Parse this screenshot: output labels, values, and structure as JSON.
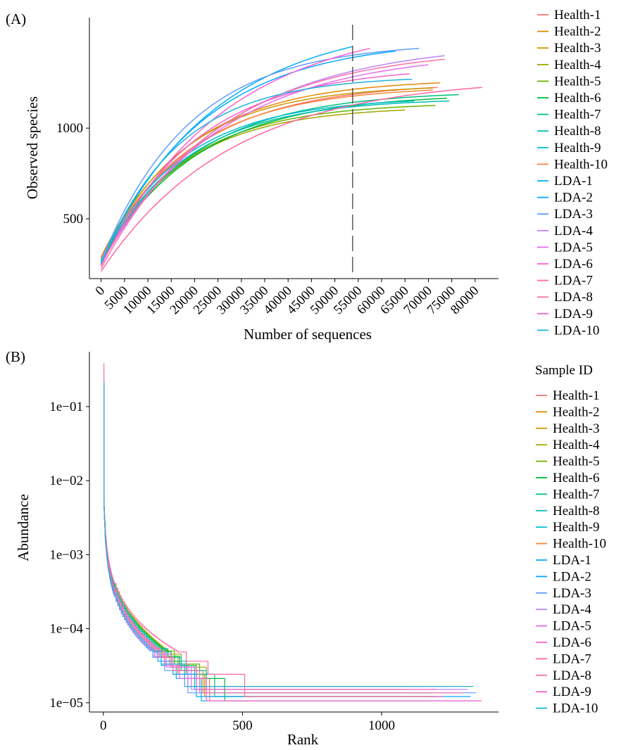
{
  "palette": [
    "#F8766D",
    "#E58700",
    "#C99800",
    "#A3A500",
    "#6BB100",
    "#00BA38",
    "#00BF7D",
    "#00C0AF",
    "#00BCD8",
    "#F8863C",
    "#00B0F6",
    "#00A9FF",
    "#619CFF",
    "#B983FF",
    "#E76BF3",
    "#FD61D1",
    "#FF67A4",
    "#FF6FA8",
    "#F664C8",
    "#1FB5D9"
  ],
  "chart_data": [
    {
      "panel": "(A)",
      "type": "line",
      "xlabel": "Number of sequences",
      "ylabel": "Observed species",
      "xlim": [
        -2500,
        85000
      ],
      "ylim": [
        170,
        1610
      ],
      "x_ticks": [
        0,
        5000,
        10000,
        15000,
        20000,
        25000,
        30000,
        35000,
        40000,
        45000,
        50000,
        55000,
        60000,
        65000,
        70000,
        75000,
        80000
      ],
      "y_ticks": [
        500,
        1000
      ],
      "vline_x": 53800,
      "vline_style": "dashed",
      "legend_position": "right",
      "series": [
        {
          "name": "Health-1",
          "start": 285,
          "mid20k": 895,
          "end_x": 72000,
          "end_y": 1225
        },
        {
          "name": "Health-2",
          "start": 290,
          "mid20k": 930,
          "end_x": 72500,
          "end_y": 1250
        },
        {
          "name": "Health-3",
          "start": 275,
          "mid20k": 925,
          "end_x": 71000,
          "end_y": 1222
        },
        {
          "name": "Health-4",
          "start": 255,
          "mid20k": 850,
          "end_x": 65000,
          "end_y": 1100
        },
        {
          "name": "Health-5",
          "start": 260,
          "mid20k": 855,
          "end_x": 71500,
          "end_y": 1125
        },
        {
          "name": "Health-6",
          "start": 265,
          "mid20k": 845,
          "end_x": 74000,
          "end_y": 1165
        },
        {
          "name": "Health-7",
          "start": 270,
          "mid20k": 860,
          "end_x": 76500,
          "end_y": 1185
        },
        {
          "name": "Health-8",
          "start": 272,
          "mid20k": 865,
          "end_x": 74500,
          "end_y": 1150
        },
        {
          "name": "Health-9",
          "start": 280,
          "mid20k": 880,
          "end_x": 67000,
          "end_y": 1150
        },
        {
          "name": "Health-10",
          "start": 285,
          "mid20k": 900,
          "end_x": 71000,
          "end_y": 1210
        },
        {
          "name": "LDA-1",
          "start": 270,
          "mid20k": 1010,
          "end_x": 53800,
          "end_y": 1450
        },
        {
          "name": "LDA-2",
          "start": 260,
          "mid20k": 1005,
          "end_x": 63000,
          "end_y": 1425
        },
        {
          "name": "LDA-3",
          "start": 265,
          "mid20k": 1050,
          "end_x": 68000,
          "end_y": 1440
        },
        {
          "name": "LDA-4",
          "start": 255,
          "mid20k": 900,
          "end_x": 73500,
          "end_y": 1400
        },
        {
          "name": "LDA-5",
          "start": 250,
          "mid20k": 890,
          "end_x": 70000,
          "end_y": 1350
        },
        {
          "name": "LDA-6",
          "start": 245,
          "mid20k": 960,
          "end_x": 57500,
          "end_y": 1440
        },
        {
          "name": "LDA-7",
          "start": 210,
          "mid20k": 760,
          "end_x": 81500,
          "end_y": 1225
        },
        {
          "name": "LDA-8",
          "start": 225,
          "mid20k": 900,
          "end_x": 73500,
          "end_y": 1380
        },
        {
          "name": "LDA-9",
          "start": 240,
          "mid20k": 930,
          "end_x": 66000,
          "end_y": 1300
        },
        {
          "name": "LDA-10",
          "start": 250,
          "mid20k": 980,
          "end_x": 66500,
          "end_y": 1270
        }
      ]
    },
    {
      "panel": "(B)",
      "type": "line",
      "xlabel": "Rank",
      "ylabel": "Abundance",
      "yscale": "log",
      "xlim": [
        -50,
        1420
      ],
      "ylim": [
        7.5e-06,
        0.55
      ],
      "x_ticks": [
        0,
        500,
        1000
      ],
      "y_ticks": [
        0.1,
        0.01,
        0.001,
        0.0001,
        1e-05
      ],
      "y_tick_labels": [
        "1e−01",
        "1e−02",
        "1e−03",
        "1e−04",
        "1e−05"
      ],
      "legend_title": "Sample ID",
      "legend_position": "right",
      "series": [
        {
          "name": "Health-1",
          "max_rank": 1150,
          "top": 0.2,
          "shape": 1.0
        },
        {
          "name": "Health-2",
          "max_rank": 1180,
          "top": 0.18,
          "shape": 1.0
        },
        {
          "name": "Health-3",
          "max_rank": 1150,
          "top": 0.16,
          "shape": 0.98
        },
        {
          "name": "Health-4",
          "max_rank": 1080,
          "top": 0.15,
          "shape": 0.94
        },
        {
          "name": "Health-5",
          "max_rank": 1120,
          "top": 0.16,
          "shape": 0.95
        },
        {
          "name": "Health-6",
          "max_rank": 1180,
          "top": 0.17,
          "shape": 0.96
        },
        {
          "name": "Health-7",
          "max_rank": 1200,
          "top": 0.18,
          "shape": 0.97
        },
        {
          "name": "Health-8",
          "max_rank": 1180,
          "top": 0.17,
          "shape": 0.97
        },
        {
          "name": "Health-9",
          "max_rank": 1100,
          "top": 0.16,
          "shape": 0.98
        },
        {
          "name": "Health-10",
          "max_rank": 1160,
          "top": 0.19,
          "shape": 1.0
        },
        {
          "name": "LDA-1",
          "max_rank": 1350,
          "top": 0.22,
          "shape": 1.05
        },
        {
          "name": "LDA-2",
          "max_rank": 1320,
          "top": 0.2,
          "shape": 1.04
        },
        {
          "name": "LDA-3",
          "max_rank": 1340,
          "top": 0.2,
          "shape": 1.05
        },
        {
          "name": "LDA-4",
          "max_rank": 1310,
          "top": 0.18,
          "shape": 1.02
        },
        {
          "name": "LDA-5",
          "max_rank": 1260,
          "top": 0.19,
          "shape": 1.01
        },
        {
          "name": "LDA-6",
          "max_rank": 1360,
          "top": 0.2,
          "shape": 1.04
        },
        {
          "name": "LDA-7",
          "max_rank": 1220,
          "top": 0.38,
          "shape": 0.6
        },
        {
          "name": "LDA-8",
          "max_rank": 1290,
          "top": 0.21,
          "shape": 1.01
        },
        {
          "name": "LDA-9",
          "max_rank": 1200,
          "top": 0.2,
          "shape": 0.99
        },
        {
          "name": "LDA-10",
          "max_rank": 1330,
          "top": 0.21,
          "shape": 1.03
        }
      ]
    }
  ]
}
